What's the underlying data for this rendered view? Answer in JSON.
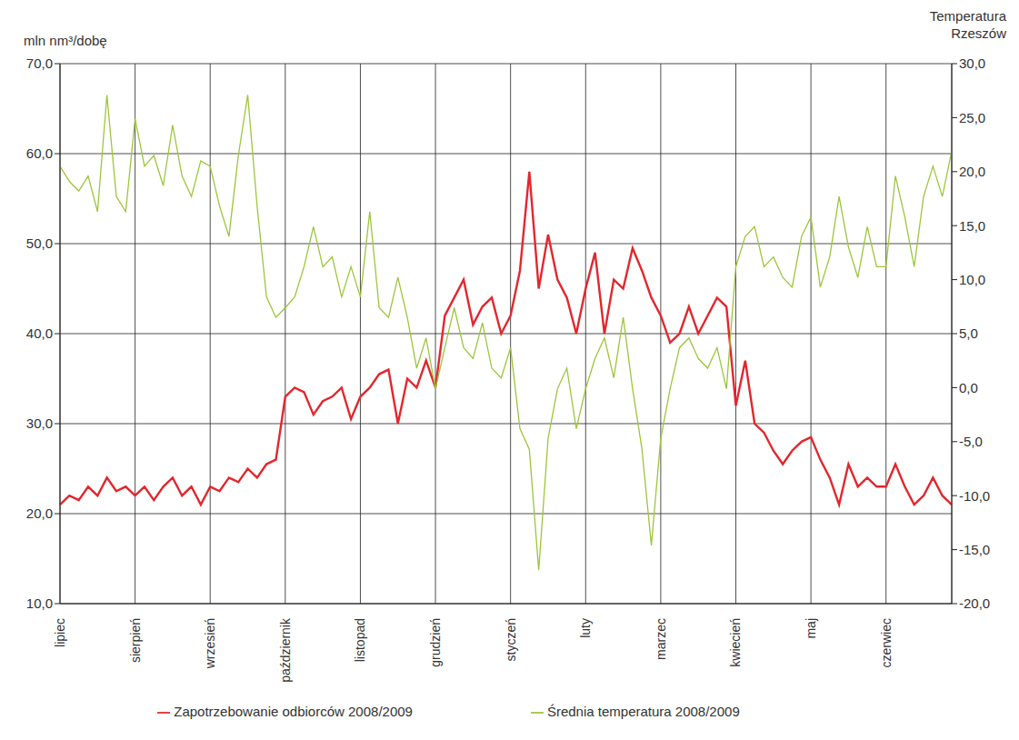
{
  "chart_data": {
    "type": "line",
    "y_label": "mln nm³/dobę",
    "y2_label": "Temperatura Rzeszów",
    "categories": [
      "lipiec",
      null,
      null,
      null,
      null,
      null,
      null,
      null,
      "sierpień",
      null,
      null,
      null,
      null,
      null,
      null,
      null,
      "wrzesień",
      null,
      null,
      null,
      null,
      null,
      null,
      null,
      "październik",
      null,
      null,
      null,
      null,
      null,
      null,
      null,
      "listopad",
      null,
      null,
      null,
      null,
      null,
      null,
      null,
      "grudzień",
      null,
      null,
      null,
      null,
      null,
      null,
      null,
      "styczeń",
      null,
      null,
      null,
      null,
      null,
      null,
      null,
      "luty",
      null,
      null,
      null,
      null,
      null,
      null,
      null,
      "marzec",
      null,
      null,
      null,
      null,
      null,
      null,
      null,
      "kwiecień",
      null,
      null,
      null,
      null,
      null,
      null,
      null,
      "maj",
      null,
      null,
      null,
      null,
      null,
      null,
      null,
      "czerwiec",
      null,
      null,
      null,
      null,
      null,
      null,
      null
    ],
    "series": [
      {
        "name": "Zapotrzebowanie odbiorców 2008/2009",
        "color": "#e3262d",
        "axis": "y",
        "values": [
          21,
          22,
          21.5,
          23,
          22,
          24,
          22.5,
          23,
          22,
          23,
          21.5,
          23,
          24,
          22,
          23,
          21,
          23,
          22.5,
          24,
          23.5,
          25,
          24,
          25.5,
          26,
          33,
          34,
          33.5,
          31,
          32.5,
          33,
          34,
          30.5,
          33,
          34,
          35.5,
          36,
          30,
          35,
          34,
          37,
          34,
          42,
          44,
          46,
          41,
          43,
          44,
          40,
          42,
          47,
          58,
          45,
          51,
          46,
          44,
          40,
          45,
          49,
          40,
          46,
          45,
          49.5,
          47,
          44,
          42,
          39,
          40,
          43,
          40,
          42,
          44,
          43,
          32,
          37,
          30,
          29,
          27,
          25.5,
          27,
          28,
          28.5,
          26,
          24,
          21,
          25.5,
          23,
          24,
          23,
          23,
          25.5,
          23,
          21,
          22,
          24,
          22,
          21
        ]
      },
      {
        "name": "Średnia temperatura 2008/2009",
        "color": "#9cc63b",
        "axis": "y2",
        "values": [
          20.5,
          19.1,
          18.2,
          19.6,
          16.3,
          27.1,
          17.7,
          16.3,
          24.9,
          20.5,
          21.5,
          18.7,
          24.3,
          19.6,
          17.7,
          21,
          20.5,
          16.8,
          14,
          21.5,
          27.1,
          16.8,
          8.4,
          6.5,
          7.4,
          8.4,
          11.2,
          14.9,
          11.2,
          12.1,
          8.4,
          11.2,
          8.4,
          16.3,
          7.4,
          6.5,
          10.2,
          6.5,
          1.8,
          4.6,
          -0.1,
          3.7,
          7.4,
          3.7,
          2.7,
          6,
          1.8,
          0.9,
          3.7,
          -3.8,
          -5.7,
          -16.9,
          -4.7,
          -0.1,
          1.8,
          -3.8,
          -0.1,
          2.7,
          4.6,
          0.9,
          6.5,
          -0.1,
          -5.7,
          -14.6,
          -4.7,
          -0.1,
          3.7,
          4.6,
          2.7,
          1.8,
          3.7,
          -0.1,
          11.2,
          14,
          14.9,
          11.2,
          12.1,
          10.2,
          9.3,
          14,
          15.8,
          9.3,
          12.1,
          17.7,
          13,
          10.2,
          14.9,
          11.2,
          11.2,
          19.6,
          15.8,
          11.2,
          17.7,
          20.5,
          17.7,
          21.9
        ]
      }
    ],
    "ylim": [
      10,
      70
    ],
    "yticks": [
      {
        "value": 10,
        "label": "10,0"
      },
      {
        "value": 20,
        "label": "20,0"
      },
      {
        "value": 30,
        "label": "30,0"
      },
      {
        "value": 40,
        "label": "40,0"
      },
      {
        "value": 50,
        "label": "50,0"
      },
      {
        "value": 60,
        "label": "60,0"
      },
      {
        "value": 70,
        "label": "70,0"
      }
    ],
    "y2lim": [
      -20,
      30
    ],
    "y2ticks": [
      {
        "value": -20,
        "label": "-20,0"
      },
      {
        "value": -15,
        "label": "-15,0"
      },
      {
        "value": -10,
        "label": "-10,0"
      },
      {
        "value": -5,
        "label": "-5,0"
      },
      {
        "value": 0,
        "label": "0,0"
      },
      {
        "value": 5,
        "label": "5,0"
      },
      {
        "value": 10,
        "label": "10,0"
      },
      {
        "value": 15,
        "label": "15,0"
      },
      {
        "value": 20,
        "label": "20,0"
      },
      {
        "value": 25,
        "label": "25,0"
      },
      {
        "value": 30,
        "label": "30,0"
      }
    ],
    "grid": true,
    "legend": "bottom"
  }
}
